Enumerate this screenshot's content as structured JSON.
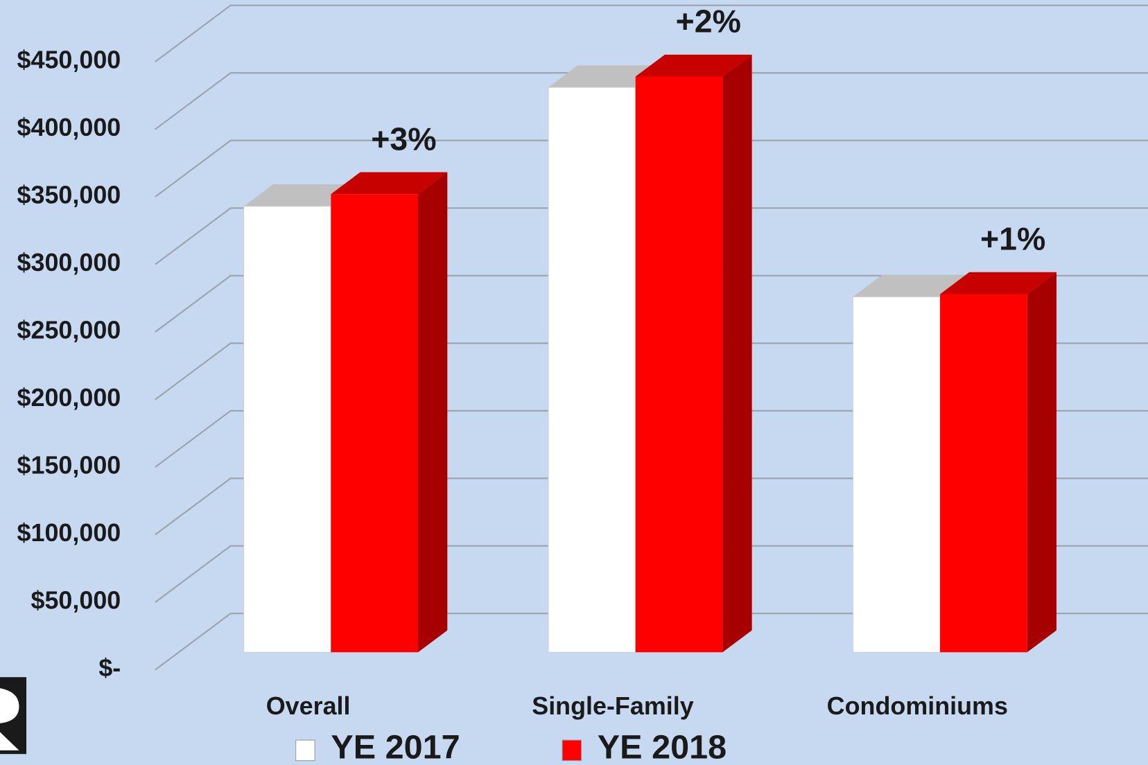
{
  "chart_data": {
    "type": "bar3d",
    "categories": [
      "Overall",
      "Single-Family",
      "Condominiums"
    ],
    "series": [
      {
        "name": "YE 2017",
        "color": "#ffffff",
        "values": [
          330000,
          418000,
          263000
        ]
      },
      {
        "name": "YE 2018",
        "color": "#ff0000",
        "values": [
          339000,
          426000,
          265000
        ]
      }
    ],
    "annotations": [
      "+3%",
      "+2%",
      "+1%"
    ],
    "ylim": [
      0,
      450000
    ],
    "yticks": [
      {
        "value": 0,
        "label": "$-"
      },
      {
        "value": 50000,
        "label": "$50,000"
      },
      {
        "value": 100000,
        "label": "$100,000"
      },
      {
        "value": 150000,
        "label": "$150,000"
      },
      {
        "value": 200000,
        "label": "$200,000"
      },
      {
        "value": 250000,
        "label": "$250,000"
      },
      {
        "value": 300000,
        "label": "$300,000"
      },
      {
        "value": 350000,
        "label": "$350,000"
      },
      {
        "value": 400000,
        "label": "$400,000"
      },
      {
        "value": 450000,
        "label": "$450,000"
      }
    ],
    "grid": true,
    "legend": "bottom"
  }
}
